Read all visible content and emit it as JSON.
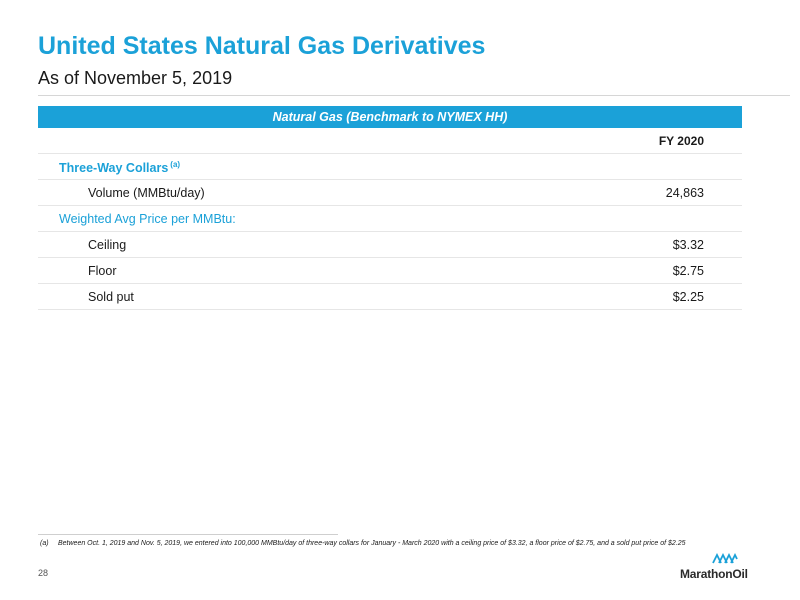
{
  "header": {
    "title": "United States Natural Gas Derivatives",
    "subtitle": "As of November 5, 2019"
  },
  "table": {
    "band_title": "Natural Gas (Benchmark to NYMEX HH)",
    "column_header": "FY 2020",
    "sections": [
      {
        "label": "Three-Way Collars",
        "footnote_marker": "(a)",
        "rows": [
          {
            "label": "Volume (MMBtu/day)",
            "value": "24,863"
          }
        ]
      },
      {
        "label": "Weighted Avg Price per MMBtu:",
        "rows": [
          {
            "label": "Ceiling",
            "value": "$3.32"
          },
          {
            "label": "Floor",
            "value": "$2.75"
          },
          {
            "label": "Sold put",
            "value": "$2.25"
          }
        ]
      }
    ]
  },
  "footnote": {
    "marker": "(a)",
    "text": "Between Oct. 1, 2019 and Nov. 5, 2019, we entered into 100,000 MMBtu/day of three-way collars for January - March 2020 with a ceiling price of $3.32, a floor price of $2.75, and a sold put price of $2.25"
  },
  "page_number": "28",
  "logo": {
    "text": "MarathonOil",
    "color": "#1ba1d8"
  }
}
